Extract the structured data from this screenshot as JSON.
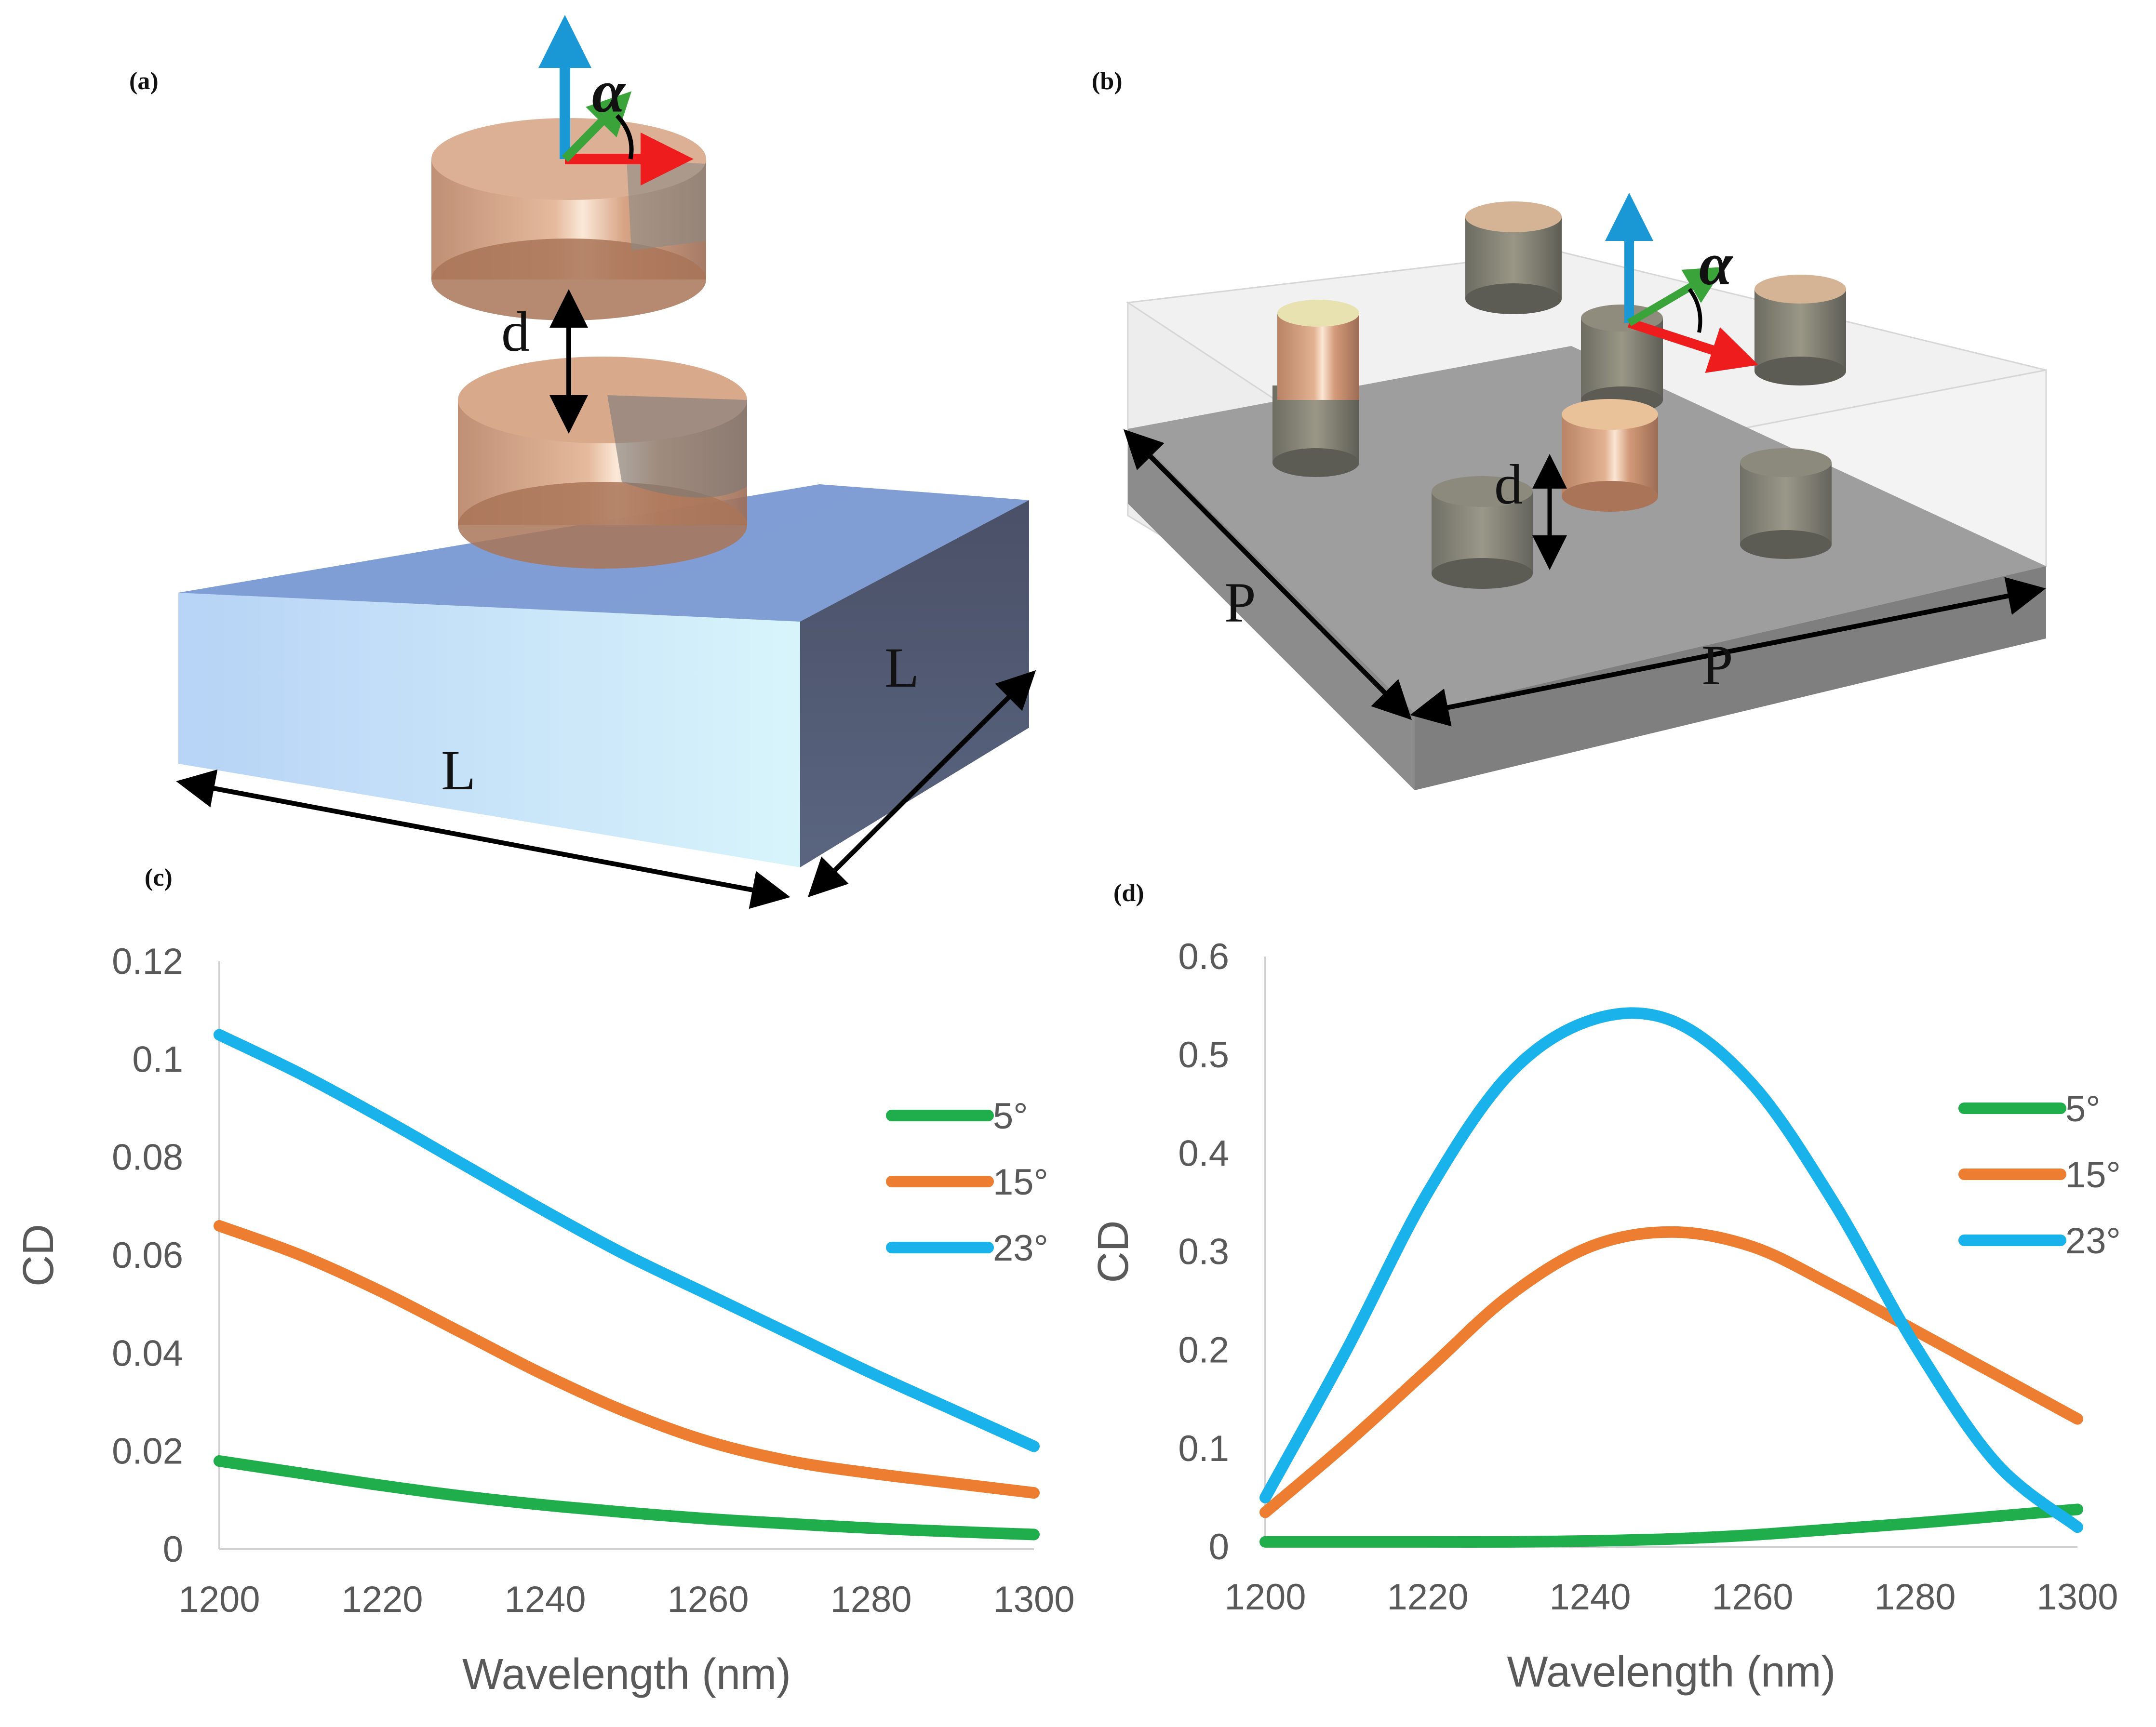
{
  "panels": {
    "a": {
      "label": "(a)",
      "dim_d": "d",
      "dim_L1": "L",
      "dim_L2": "L",
      "angle": "α"
    },
    "b": {
      "label": "(b)",
      "dim_d": "d",
      "dim_P1": "P",
      "dim_P2": "P",
      "angle": "α"
    },
    "c": {
      "label": "(c)"
    },
    "d": {
      "label": "(d)"
    }
  },
  "colors": {
    "series_5": "#1fae4b",
    "series_15": "#ed7d31",
    "series_23": "#1ab2ea",
    "axis_text": "#595959",
    "substrate_a": "#9fc4ee",
    "substrate_b": "#8c8c8c",
    "copper": "#d49a78"
  },
  "chart_data": [
    {
      "panel": "(c)",
      "type": "line",
      "title": "",
      "xlabel": "Wavelength (nm)",
      "ylabel": "CD",
      "xlim": [
        1200,
        1300
      ],
      "ylim": [
        0,
        0.12
      ],
      "xticks": [
        "1200",
        "1220",
        "1240",
        "1260",
        "1280",
        "1300"
      ],
      "yticks": [
        "0",
        "0.02",
        "0.04",
        "0.06",
        "0.08",
        "0.1",
        "0.12"
      ],
      "x": [
        1200,
        1210,
        1220,
        1230,
        1240,
        1250,
        1260,
        1270,
        1280,
        1290,
        1300
      ],
      "series": [
        {
          "name": "5°",
          "color_key": "series_5",
          "values": [
            0.018,
            0.0155,
            0.013,
            0.0108,
            0.009,
            0.0075,
            0.0062,
            0.0052,
            0.0043,
            0.0036,
            0.003
          ]
        },
        {
          "name": "15°",
          "color_key": "series_15",
          "values": [
            0.066,
            0.06,
            0.0525,
            0.044,
            0.0355,
            0.028,
            0.022,
            0.018,
            0.0155,
            0.0135,
            0.0115
          ]
        },
        {
          "name": "23°",
          "color_key": "series_23",
          "values": [
            0.105,
            0.097,
            0.088,
            0.0785,
            0.069,
            0.06,
            0.052,
            0.044,
            0.036,
            0.0285,
            0.021
          ]
        }
      ],
      "legend": "right"
    },
    {
      "panel": "(d)",
      "type": "line",
      "title": "",
      "xlabel": "Wavelength (nm)",
      "ylabel": "CD",
      "xlim": [
        1200,
        1300
      ],
      "ylim": [
        0,
        0.6
      ],
      "xticks": [
        "1200",
        "1220",
        "1240",
        "1260",
        "1280",
        "1300"
      ],
      "yticks": [
        "0",
        "0.1",
        "0.2",
        "0.3",
        "0.4",
        "0.5",
        "0.6"
      ],
      "x": [
        1200,
        1210,
        1220,
        1230,
        1240,
        1250,
        1260,
        1270,
        1280,
        1290,
        1300
      ],
      "series": [
        {
          "name": "5°",
          "color_key": "series_5",
          "values": [
            0.005,
            0.005,
            0.005,
            0.005,
            0.006,
            0.008,
            0.012,
            0.018,
            0.024,
            0.031,
            0.038
          ]
        },
        {
          "name": "15°",
          "color_key": "series_15",
          "values": [
            0.035,
            0.105,
            0.18,
            0.255,
            0.305,
            0.32,
            0.305,
            0.265,
            0.22,
            0.175,
            0.13
          ]
        },
        {
          "name": "23°",
          "color_key": "series_23",
          "values": [
            0.05,
            0.2,
            0.36,
            0.48,
            0.535,
            0.535,
            0.47,
            0.35,
            0.205,
            0.085,
            0.02
          ]
        }
      ],
      "legend": "right"
    }
  ]
}
